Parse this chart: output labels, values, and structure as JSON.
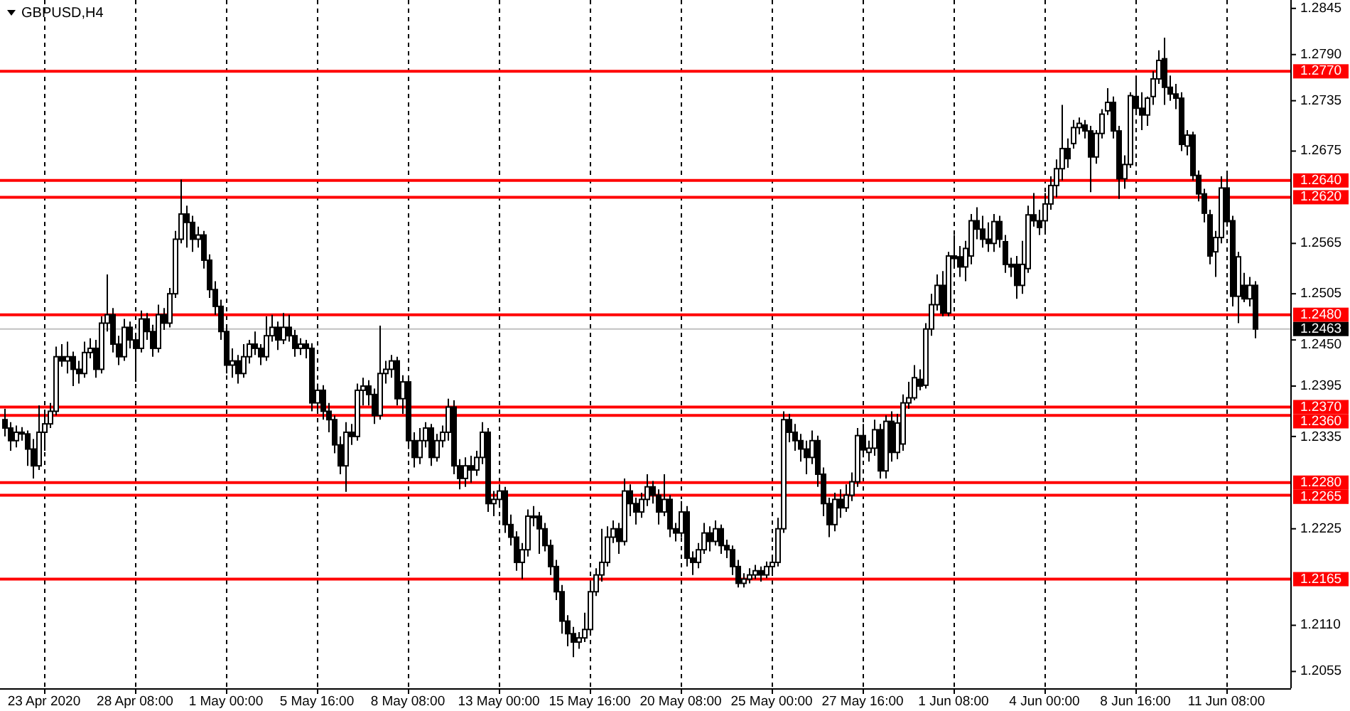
{
  "chart_data": {
    "type": "candlestick",
    "title": "GBPUSD,H4",
    "categories": [
      null,
      null,
      null,
      null,
      null,
      null,
      null,
      "23 Apr 2020",
      null,
      null,
      null,
      null,
      null,
      null,
      null,
      null,
      null,
      null,
      null,
      null,
      null,
      null,
      null,
      "28 Apr 08:00",
      null,
      null,
      null,
      null,
      null,
      null,
      null,
      null,
      null,
      null,
      null,
      null,
      null,
      null,
      null,
      "1 May 00:00",
      null,
      null,
      null,
      null,
      null,
      null,
      null,
      null,
      null,
      null,
      null,
      null,
      null,
      null,
      null,
      "5 May 16:00",
      null,
      null,
      null,
      null,
      null,
      null,
      null,
      null,
      null,
      null,
      null,
      null,
      null,
      null,
      null,
      "8 May 08:00",
      null,
      null,
      null,
      null,
      null,
      null,
      null,
      null,
      null,
      null,
      null,
      null,
      null,
      null,
      null,
      "13 May 00:00",
      null,
      null,
      null,
      null,
      null,
      null,
      null,
      null,
      null,
      null,
      null,
      null,
      null,
      null,
      null,
      "15 May 16:00",
      null,
      null,
      null,
      null,
      null,
      null,
      null,
      null,
      null,
      null,
      null,
      null,
      null,
      null,
      null,
      "20 May 08:00",
      null,
      null,
      null,
      null,
      null,
      null,
      null,
      null,
      null,
      null,
      null,
      null,
      null,
      null,
      null,
      "25 May 00:00",
      null,
      null,
      null,
      null,
      null,
      null,
      null,
      null,
      null,
      null,
      null,
      null,
      null,
      null,
      null,
      "27 May 16:00",
      null,
      null,
      null,
      null,
      null,
      null,
      null,
      null,
      null,
      null,
      null,
      null,
      null,
      null,
      null,
      "1 Jun 08:00",
      null,
      null,
      null,
      null,
      null,
      null,
      null,
      null,
      null,
      null,
      null,
      null,
      null,
      null,
      null,
      "4 Jun 00:00",
      null,
      null,
      null,
      null,
      null,
      null,
      null,
      null,
      null,
      null,
      null,
      null,
      null,
      null,
      null,
      "8 Jun 16:00",
      null,
      null,
      null,
      null,
      null,
      null,
      null,
      null,
      null,
      null,
      null,
      null,
      null,
      null,
      null,
      "11 Jun 08:00",
      null,
      null,
      null,
      null,
      null
    ],
    "ohlc": [
      [
        1.2355,
        1.2368,
        1.2335,
        1.2345
      ],
      [
        1.2345,
        1.2352,
        1.2318,
        1.233
      ],
      [
        1.233,
        1.2348,
        1.2322,
        1.234
      ],
      [
        1.234,
        1.2346,
        1.233,
        1.2338
      ],
      [
        1.2338,
        1.2342,
        1.23,
        1.232
      ],
      [
        1.232,
        1.2332,
        1.2285,
        1.23
      ],
      [
        1.23,
        1.2372,
        1.2295,
        1.234
      ],
      [
        1.234,
        1.2362,
        1.2318,
        1.235
      ],
      [
        1.235,
        1.2375,
        1.2345,
        1.2365
      ],
      [
        1.2365,
        1.2442,
        1.236,
        1.243
      ],
      [
        1.243,
        1.2445,
        1.2418,
        1.2425
      ],
      [
        1.2425,
        1.2448,
        1.241,
        1.243
      ],
      [
        1.243,
        1.2436,
        1.2395,
        1.2415
      ],
      [
        1.2415,
        1.2425,
        1.2398,
        1.241
      ],
      [
        1.241,
        1.2448,
        1.2405,
        1.2435
      ],
      [
        1.2435,
        1.2452,
        1.2428,
        1.244
      ],
      [
        1.244,
        1.245,
        1.2405,
        1.2415
      ],
      [
        1.2415,
        1.2478,
        1.241,
        1.247
      ],
      [
        1.247,
        1.2528,
        1.246,
        1.248
      ],
      [
        1.248,
        1.2488,
        1.2435,
        1.2445
      ],
      [
        1.2445,
        1.2455,
        1.242,
        1.243
      ],
      [
        1.243,
        1.2475,
        1.2425,
        1.2465
      ],
      [
        1.2465,
        1.2472,
        1.244,
        1.245
      ],
      [
        1.245,
        1.2458,
        1.24,
        1.244
      ],
      [
        1.244,
        1.2485,
        1.2435,
        1.2475
      ],
      [
        1.2475,
        1.2482,
        1.245,
        1.246
      ],
      [
        1.246,
        1.2468,
        1.243,
        1.244
      ],
      [
        1.244,
        1.2492,
        1.2435,
        1.248
      ],
      [
        1.248,
        1.2488,
        1.2462,
        1.247
      ],
      [
        1.247,
        1.2512,
        1.2465,
        1.2505
      ],
      [
        1.2505,
        1.258,
        1.25,
        1.257
      ],
      [
        1.257,
        1.2641,
        1.2565,
        1.26
      ],
      [
        1.26,
        1.261,
        1.256,
        1.259
      ],
      [
        1.259,
        1.2598,
        1.2555,
        1.257
      ],
      [
        1.257,
        1.2585,
        1.256,
        1.2575
      ],
      [
        1.2575,
        1.258,
        1.2535,
        1.2545
      ],
      [
        1.2545,
        1.2552,
        1.25,
        1.251
      ],
      [
        1.251,
        1.252,
        1.248,
        1.249
      ],
      [
        1.249,
        1.2498,
        1.245,
        1.246
      ],
      [
        1.246,
        1.2468,
        1.241,
        1.242
      ],
      [
        1.242,
        1.244,
        1.2405,
        1.2425
      ],
      [
        1.2425,
        1.2432,
        1.2398,
        1.241
      ],
      [
        1.241,
        1.2445,
        1.2405,
        1.243
      ],
      [
        1.243,
        1.245,
        1.2422,
        1.2445
      ],
      [
        1.2445,
        1.246,
        1.2432,
        1.244
      ],
      [
        1.244,
        1.2445,
        1.242,
        1.243
      ],
      [
        1.243,
        1.2478,
        1.2425,
        1.2455
      ],
      [
        1.2455,
        1.248,
        1.2448,
        1.2465
      ],
      [
        1.2465,
        1.2472,
        1.2438,
        1.245
      ],
      [
        1.245,
        1.2482,
        1.2445,
        1.2465
      ],
      [
        1.2465,
        1.248,
        1.2448,
        1.2455
      ],
      [
        1.2455,
        1.2462,
        1.243,
        1.244
      ],
      [
        1.244,
        1.2452,
        1.2432,
        1.2445
      ],
      [
        1.2445,
        1.245,
        1.2428,
        1.244
      ],
      [
        1.244,
        1.2446,
        1.2365,
        1.2375
      ],
      [
        1.2375,
        1.2398,
        1.2362,
        1.239
      ],
      [
        1.239,
        1.2396,
        1.2355,
        1.2365
      ],
      [
        1.2365,
        1.2375,
        1.234,
        1.2355
      ],
      [
        1.2355,
        1.236,
        1.2315,
        1.2325
      ],
      [
        1.2325,
        1.2335,
        1.229,
        1.23
      ],
      [
        1.23,
        1.2352,
        1.2269,
        1.234
      ],
      [
        1.234,
        1.235,
        1.2325,
        1.2335
      ],
      [
        1.2335,
        1.2398,
        1.233,
        1.239
      ],
      [
        1.239,
        1.2405,
        1.2372,
        1.2395
      ],
      [
        1.2395,
        1.2402,
        1.2372,
        1.2385
      ],
      [
        1.2385,
        1.2392,
        1.235,
        1.236
      ],
      [
        1.236,
        1.2467,
        1.2355,
        1.241
      ],
      [
        1.241,
        1.2425,
        1.2398,
        1.2415
      ],
      [
        1.2415,
        1.2432,
        1.2405,
        1.2425
      ],
      [
        1.2425,
        1.243,
        1.2372,
        1.238
      ],
      [
        1.238,
        1.2408,
        1.2362,
        1.24
      ],
      [
        1.24,
        1.2405,
        1.232,
        1.233
      ],
      [
        1.233,
        1.234,
        1.2298,
        1.231
      ],
      [
        1.231,
        1.2345,
        1.2302,
        1.233
      ],
      [
        1.233,
        1.2352,
        1.2322,
        1.2345
      ],
      [
        1.2345,
        1.235,
        1.23,
        1.231
      ],
      [
        1.231,
        1.2338,
        1.2305,
        1.233
      ],
      [
        1.233,
        1.2348,
        1.2322,
        1.234
      ],
      [
        1.234,
        1.238,
        1.233,
        1.237
      ],
      [
        1.237,
        1.2378,
        1.229,
        1.23
      ],
      [
        1.23,
        1.2308,
        1.2272,
        1.2285
      ],
      [
        1.2285,
        1.231,
        1.2275,
        1.23
      ],
      [
        1.23,
        1.2312,
        1.228,
        1.2295
      ],
      [
        1.2295,
        1.2318,
        1.2288,
        1.231
      ],
      [
        1.231,
        1.2352,
        1.2302,
        1.234
      ],
      [
        1.234,
        1.2345,
        1.2245,
        1.2255
      ],
      [
        1.2255,
        1.227,
        1.224,
        1.226
      ],
      [
        1.226,
        1.2278,
        1.225,
        1.227
      ],
      [
        1.227,
        1.2275,
        1.222,
        1.223
      ],
      [
        1.223,
        1.2242,
        1.2205,
        1.2215
      ],
      [
        1.2215,
        1.2222,
        1.2175,
        1.2185
      ],
      [
        1.2185,
        1.2208,
        1.2165,
        1.22
      ],
      [
        1.22,
        1.2248,
        1.2192,
        1.224
      ],
      [
        1.224,
        1.2252,
        1.2228,
        1.224
      ],
      [
        1.224,
        1.2245,
        1.2195,
        1.2225
      ],
      [
        1.2225,
        1.2232,
        1.2198,
        1.2205
      ],
      [
        1.2205,
        1.2212,
        1.217,
        1.218
      ],
      [
        1.218,
        1.2188,
        1.214,
        1.215
      ],
      [
        1.215,
        1.2158,
        1.21,
        1.2115
      ],
      [
        1.2115,
        1.2122,
        1.2085,
        1.21
      ],
      [
        1.21,
        1.2108,
        1.2072,
        1.209
      ],
      [
        1.209,
        1.2102,
        1.2082,
        1.2095
      ],
      [
        1.2095,
        1.2125,
        1.209,
        1.2105
      ],
      [
        1.2105,
        1.216,
        1.21,
        1.215
      ],
      [
        1.215,
        1.2178,
        1.2145,
        1.217
      ],
      [
        1.217,
        1.2225,
        1.2162,
        1.2185
      ],
      [
        1.2185,
        1.2228,
        1.218,
        1.2215
      ],
      [
        1.2215,
        1.2235,
        1.2208,
        1.2225
      ],
      [
        1.2225,
        1.2232,
        1.2195,
        1.221
      ],
      [
        1.221,
        1.2285,
        1.2205,
        1.227
      ],
      [
        1.227,
        1.2278,
        1.224,
        1.2255
      ],
      [
        1.2255,
        1.2262,
        1.223,
        1.2245
      ],
      [
        1.2245,
        1.2268,
        1.2238,
        1.226
      ],
      [
        1.226,
        1.229,
        1.2252,
        1.2275
      ],
      [
        1.2275,
        1.2282,
        1.2255,
        1.2265
      ],
      [
        1.2265,
        1.2272,
        1.223,
        1.2245
      ],
      [
        1.2245,
        1.229,
        1.224,
        1.226
      ],
      [
        1.226,
        1.2265,
        1.2215,
        1.2225
      ],
      [
        1.2225,
        1.2232,
        1.221,
        1.222
      ],
      [
        1.222,
        1.2258,
        1.2215,
        1.2245
      ],
      [
        1.2245,
        1.2252,
        1.218,
        1.219
      ],
      [
        1.219,
        1.2198,
        1.217,
        1.2185
      ],
      [
        1.2185,
        1.2208,
        1.2178,
        1.22
      ],
      [
        1.22,
        1.2232,
        1.2195,
        1.222
      ],
      [
        1.222,
        1.2228,
        1.2198,
        1.221
      ],
      [
        1.221,
        1.2235,
        1.2205,
        1.2225
      ],
      [
        1.2225,
        1.223,
        1.2195,
        1.2205
      ],
      [
        1.2205,
        1.2212,
        1.219,
        1.22
      ],
      [
        1.22,
        1.2205,
        1.217,
        1.218
      ],
      [
        1.218,
        1.2188,
        1.2155,
        1.216
      ],
      [
        1.216,
        1.2172,
        1.2155,
        1.2165
      ],
      [
        1.2165,
        1.2178,
        1.216,
        1.217
      ],
      [
        1.217,
        1.2182,
        1.2165,
        1.2175
      ],
      [
        1.2175,
        1.218,
        1.2162,
        1.217
      ],
      [
        1.217,
        1.2186,
        1.2166,
        1.218
      ],
      [
        1.218,
        1.2192,
        1.2172,
        1.2185
      ],
      [
        1.2185,
        1.2238,
        1.218,
        1.2225
      ],
      [
        1.2225,
        1.2365,
        1.222,
        1.2355
      ],
      [
        1.2355,
        1.2362,
        1.2328,
        1.234
      ],
      [
        1.234,
        1.235,
        1.2318,
        1.233
      ],
      [
        1.233,
        1.2338,
        1.2305,
        1.232
      ],
      [
        1.232,
        1.233,
        1.229,
        1.231
      ],
      [
        1.231,
        1.2342,
        1.2302,
        1.233
      ],
      [
        1.233,
        1.2336,
        1.2275,
        1.229
      ],
      [
        1.229,
        1.2298,
        1.224,
        1.2255
      ],
      [
        1.2255,
        1.2262,
        1.2215,
        1.223
      ],
      [
        1.223,
        1.2268,
        1.2222,
        1.226
      ],
      [
        1.226,
        1.2272,
        1.2238,
        1.225
      ],
      [
        1.225,
        1.2278,
        1.2245,
        1.2265
      ],
      [
        1.2265,
        1.2292,
        1.2258,
        1.2281
      ],
      [
        1.2281,
        1.2345,
        1.2275,
        1.2336
      ],
      [
        1.2336,
        1.235,
        1.231,
        1.2319
      ],
      [
        1.2316,
        1.233,
        1.2305,
        1.2321
      ],
      [
        1.2321,
        1.2355,
        1.2312,
        1.2343
      ],
      [
        1.2343,
        1.235,
        1.2285,
        1.2294
      ],
      [
        1.2294,
        1.236,
        1.2285,
        1.2353
      ],
      [
        1.2353,
        1.2365,
        1.2305,
        1.2316
      ],
      [
        1.2316,
        1.2362,
        1.2308,
        1.2351
      ],
      [
        1.2326,
        1.2385,
        1.2318,
        1.2375
      ],
      [
        1.2375,
        1.24,
        1.2368,
        1.2381
      ],
      [
        1.2381,
        1.242,
        1.2378,
        1.2405
      ],
      [
        1.2403,
        1.2415,
        1.239,
        1.2395
      ],
      [
        1.2396,
        1.247,
        1.2392,
        1.2463
      ],
      [
        1.2463,
        1.2505,
        1.2455,
        1.2492
      ],
      [
        1.2492,
        1.2528,
        1.2485,
        1.2515
      ],
      [
        1.2515,
        1.2532,
        1.2478,
        1.2482
      ],
      [
        1.2482,
        1.2555,
        1.2478,
        1.255
      ],
      [
        1.255,
        1.2575,
        1.2535,
        1.2547
      ],
      [
        1.2549,
        1.2562,
        1.2525,
        1.2537
      ],
      [
        1.2537,
        1.2568,
        1.252,
        1.2559
      ],
      [
        1.255,
        1.26,
        1.254,
        1.2592
      ],
      [
        1.2592,
        1.2608,
        1.257,
        1.2582
      ],
      [
        1.2582,
        1.2598,
        1.256,
        1.257
      ],
      [
        1.257,
        1.259,
        1.2555,
        1.2565
      ],
      [
        1.2565,
        1.26,
        1.2555,
        1.2591
      ],
      [
        1.2591,
        1.2598,
        1.256,
        1.257
      ],
      [
        1.2567,
        1.2575,
        1.253,
        1.254
      ],
      [
        1.254,
        1.2548,
        1.2525,
        1.2537
      ],
      [
        1.254,
        1.255,
        1.2499,
        1.2515
      ],
      [
        1.2515,
        1.2568,
        1.2505,
        1.254
      ],
      [
        1.2535,
        1.261,
        1.253,
        1.2599
      ],
      [
        1.2599,
        1.2625,
        1.2585,
        1.2592
      ],
      [
        1.2592,
        1.2605,
        1.2575,
        1.2584
      ],
      [
        1.2592,
        1.2625,
        1.258,
        1.2612
      ],
      [
        1.2612,
        1.2645,
        1.2605,
        1.2634
      ],
      [
        1.2634,
        1.2665,
        1.262,
        1.2654
      ],
      [
        1.2654,
        1.273,
        1.264,
        1.2678
      ],
      [
        1.2678,
        1.269,
        1.2655,
        1.2666
      ],
      [
        1.2684,
        1.2712,
        1.2678,
        1.2703
      ],
      [
        1.2703,
        1.2715,
        1.2695,
        1.2708
      ],
      [
        1.2706,
        1.2712,
        1.269,
        1.2699
      ],
      [
        1.2699,
        1.2705,
        1.2626,
        1.2668
      ],
      [
        1.2668,
        1.27,
        1.266,
        1.2696
      ],
      [
        1.2696,
        1.2725,
        1.269,
        1.2719
      ],
      [
        1.2723,
        1.275,
        1.2718,
        1.2733
      ],
      [
        1.2733,
        1.274,
        1.269,
        1.2699
      ],
      [
        1.2699,
        1.2705,
        1.2618,
        1.2642
      ],
      [
        1.2642,
        1.267,
        1.263,
        1.2659
      ],
      [
        1.2659,
        1.2745,
        1.2655,
        1.2741
      ],
      [
        1.274,
        1.2765,
        1.272,
        1.2726
      ],
      [
        1.2726,
        1.2745,
        1.27,
        1.2718
      ],
      [
        1.2718,
        1.274,
        1.2705,
        1.2738
      ],
      [
        1.274,
        1.277,
        1.273,
        1.2761
      ],
      [
        1.2761,
        1.2795,
        1.2755,
        1.2783
      ],
      [
        1.2785,
        1.281,
        1.273,
        1.2751
      ],
      [
        1.2751,
        1.2765,
        1.2735,
        1.2743
      ],
      [
        1.2743,
        1.2755,
        1.2725,
        1.2738
      ],
      [
        1.2738,
        1.2745,
        1.2675,
        1.2683
      ],
      [
        1.2681,
        1.27,
        1.267,
        1.2694
      ],
      [
        1.2694,
        1.2698,
        1.264,
        1.2646
      ],
      [
        1.2646,
        1.2652,
        1.2615,
        1.2624
      ],
      [
        1.2624,
        1.263,
        1.259,
        1.2601
      ],
      [
        1.2599,
        1.2605,
        1.254,
        1.255
      ],
      [
        1.2555,
        1.258,
        1.2525,
        1.2572
      ],
      [
        1.2572,
        1.2645,
        1.2565,
        1.2631
      ],
      [
        1.2631,
        1.265,
        1.2585,
        1.2591
      ],
      [
        1.2592,
        1.2598,
        1.249,
        1.2502
      ],
      [
        1.2502,
        1.2555,
        1.247,
        1.2549
      ],
      [
        1.2515,
        1.253,
        1.2495,
        1.2499
      ],
      [
        1.2499,
        1.2525,
        1.249,
        1.2515
      ],
      [
        1.2515,
        1.252,
        1.2452,
        1.2463
      ]
    ],
    "ylim": [
      1.2035,
      1.2855
    ],
    "yticks": [
      1.2055,
      {
        "value": 1.211,
        "label": "1.2110"
      },
      1.2225,
      1.2335,
      1.2395,
      {
        "value": 1.245,
        "label": "1.2450"
      },
      1.2505,
      1.2565,
      1.2675,
      1.2735,
      {
        "value": 1.279,
        "label": "1.2790"
      },
      1.2845
    ],
    "grid": "x",
    "ref_lines": [
      {
        "axis": "y",
        "value": 1.277,
        "label": "1.2770",
        "color": "#ff0000"
      },
      {
        "axis": "y",
        "value": 1.264,
        "label": "1.2640",
        "color": "#ff0000"
      },
      {
        "axis": "y",
        "value": 1.262,
        "label": "1.2620",
        "color": "#ff0000"
      },
      {
        "axis": "y",
        "value": 1.248,
        "label": "1.2480",
        "color": "#ff0000"
      },
      {
        "axis": "y",
        "value": 1.2463,
        "label": "1.2463",
        "color": "#c0c0c0"
      },
      {
        "axis": "y",
        "value": 1.237,
        "label": "1.2370",
        "color": "#ff0000"
      },
      {
        "axis": "y",
        "value": 1.236,
        "label": "1.2360",
        "color": "#ff0000"
      },
      {
        "axis": "y",
        "value": 1.228,
        "label": "1.2280",
        "color": "#ff0000"
      },
      {
        "axis": "y",
        "value": 1.2265,
        "label": "1.2265",
        "color": "#ff0000"
      },
      {
        "axis": "y",
        "value": 1.2165,
        "label": "1.2165",
        "color": "#ff0000"
      }
    ]
  }
}
